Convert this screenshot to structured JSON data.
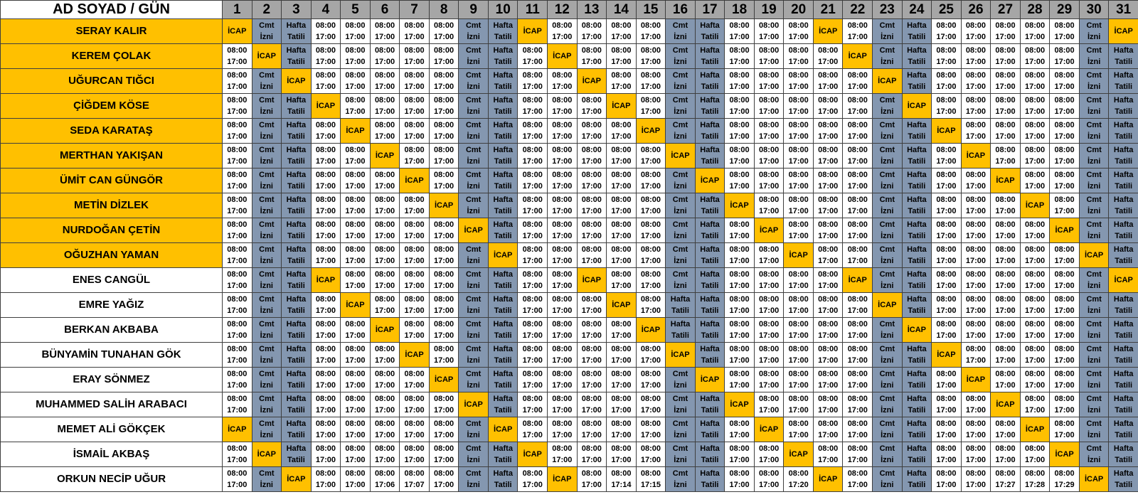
{
  "header": {
    "label": "AD SOYAD / GÜN"
  },
  "days": [
    "1",
    "2",
    "3",
    "4",
    "5",
    "6",
    "7",
    "8",
    "9",
    "10",
    "11",
    "12",
    "13",
    "14",
    "15",
    "16",
    "17",
    "18",
    "19",
    "20",
    "21",
    "22",
    "23",
    "24",
    "25",
    "26",
    "27",
    "28",
    "29",
    "30",
    "31"
  ],
  "legend": {
    "icap": "İCAP",
    "cmt": [
      "Cmt",
      "İzni"
    ],
    "hafta": [
      "Hafta",
      "Tatili"
    ],
    "default_start": "08:00",
    "default_end": "17:00"
  },
  "colors": {
    "header_bg": "#a6a6a6",
    "icap": "#ffc000",
    "off": "#8497b0",
    "work": "#ffffff",
    "highlight_name": "#ffc000"
  },
  "staff": [
    {
      "name": "SERAY KALIR",
      "highlight": true,
      "icap": [
        1,
        11,
        21,
        31
      ],
      "cmt": [
        2,
        9,
        16,
        23,
        30
      ],
      "hafta": [
        3,
        10,
        17,
        24
      ],
      "times": {}
    },
    {
      "name": "KEREM ÇOLAK",
      "highlight": true,
      "icap": [
        2,
        12,
        22
      ],
      "cmt": [
        9,
        16,
        23,
        30
      ],
      "hafta": [
        3,
        10,
        17,
        24,
        31
      ],
      "times": {}
    },
    {
      "name": "UĞURCAN TIĞCI",
      "highlight": true,
      "icap": [
        3,
        13,
        23
      ],
      "cmt": [
        2,
        9,
        16,
        30
      ],
      "hafta": [
        10,
        17,
        24,
        31
      ],
      "times": {}
    },
    {
      "name": "ÇİĞDEM KÖSE",
      "highlight": true,
      "icap": [
        4,
        14,
        24
      ],
      "cmt": [
        2,
        9,
        16,
        23,
        30
      ],
      "hafta": [
        3,
        10,
        17,
        31
      ],
      "times": {}
    },
    {
      "name": "SEDA KARATAŞ",
      "highlight": true,
      "icap": [
        5,
        15,
        25
      ],
      "cmt": [
        2,
        9,
        16,
        23,
        30
      ],
      "hafta": [
        3,
        10,
        17,
        24,
        31
      ],
      "times": {}
    },
    {
      "name": "MERTHAN YAKIŞAN",
      "highlight": true,
      "icap": [
        6,
        16,
        26
      ],
      "cmt": [
        2,
        9,
        23,
        30
      ],
      "hafta": [
        3,
        10,
        17,
        24,
        31
      ],
      "times": {}
    },
    {
      "name": "ÜMİT CAN GÜNGÖR",
      "highlight": true,
      "icap": [
        7,
        17,
        27
      ],
      "cmt": [
        2,
        9,
        16,
        23,
        30
      ],
      "hafta": [
        3,
        10,
        24,
        31
      ],
      "times": {}
    },
    {
      "name": "METİN DİZLEK",
      "highlight": true,
      "icap": [
        8,
        18,
        28
      ],
      "cmt": [
        2,
        9,
        16,
        23,
        30
      ],
      "hafta": [
        3,
        10,
        17,
        24,
        31
      ],
      "times": {}
    },
    {
      "name": "NURDOĞAN ÇETİN",
      "highlight": true,
      "icap": [
        9,
        19,
        29
      ],
      "cmt": [
        2,
        16,
        23,
        30
      ],
      "hafta": [
        3,
        10,
        17,
        24,
        31
      ],
      "times": {}
    },
    {
      "name": "OĞUZHAN YAMAN",
      "highlight": true,
      "icap": [
        10,
        20,
        30
      ],
      "cmt": [
        2,
        9,
        16,
        23
      ],
      "hafta": [
        3,
        17,
        24,
        31
      ],
      "times": {}
    },
    {
      "name": "ENES CANGÜL",
      "highlight": false,
      "icap": [
        4,
        13,
        22,
        31
      ],
      "cmt": [
        2,
        9,
        16,
        23,
        30
      ],
      "hafta": [
        3,
        10,
        17,
        24
      ],
      "times": {}
    },
    {
      "name": "EMRE YAĞIZ",
      "highlight": false,
      "icap": [
        5,
        14,
        23
      ],
      "cmt": [
        2,
        9,
        30
      ],
      "hafta": [
        3,
        10,
        16,
        17,
        24,
        31
      ],
      "times": {}
    },
    {
      "name": "BERKAN AKBABA",
      "highlight": false,
      "icap": [
        6,
        15,
        24
      ],
      "cmt": [
        2,
        9,
        23,
        30
      ],
      "hafta": [
        3,
        10,
        16,
        17,
        31
      ],
      "times": {}
    },
    {
      "name": "BÜNYAMİN TUNAHAN GÖK",
      "highlight": false,
      "icap": [
        7,
        16,
        25
      ],
      "cmt": [
        2,
        9,
        23,
        30
      ],
      "hafta": [
        3,
        10,
        17,
        24,
        31
      ],
      "times": {}
    },
    {
      "name": "ERAY SÖNMEZ",
      "highlight": false,
      "icap": [
        8,
        17,
        26
      ],
      "cmt": [
        2,
        9,
        16,
        23,
        30
      ],
      "hafta": [
        3,
        10,
        24,
        31
      ],
      "times": {}
    },
    {
      "name": "MUHAMMED SALİH ARABACI",
      "highlight": false,
      "icap": [
        9,
        18,
        27
      ],
      "cmt": [
        2,
        16,
        23,
        30
      ],
      "hafta": [
        3,
        10,
        17,
        24,
        31
      ],
      "times": {}
    },
    {
      "name": "MEMET ALİ GÖKÇEK",
      "highlight": false,
      "icap": [
        1,
        10,
        19,
        28
      ],
      "cmt": [
        2,
        9,
        16,
        23,
        30
      ],
      "hafta": [
        3,
        17,
        24,
        31
      ],
      "times": {}
    },
    {
      "name": "İSMAİL AKBAŞ",
      "highlight": false,
      "icap": [
        2,
        11,
        20,
        29
      ],
      "cmt": [
        9,
        16,
        23,
        30
      ],
      "hafta": [
        3,
        10,
        17,
        24,
        31
      ],
      "times": {}
    },
    {
      "name": "ORKUN NECİP UĞUR",
      "highlight": false,
      "icap": [
        3,
        12,
        21,
        30
      ],
      "cmt": [
        2,
        9,
        16,
        23
      ],
      "hafta": [
        10,
        17,
        24,
        31
      ],
      "times": {
        "6": "17:06",
        "7": "17:07",
        "14": "17:14",
        "15": "17:15",
        "20": "17:20",
        "27": "17:27",
        "28": "17:28",
        "29": "17:29"
      }
    }
  ]
}
